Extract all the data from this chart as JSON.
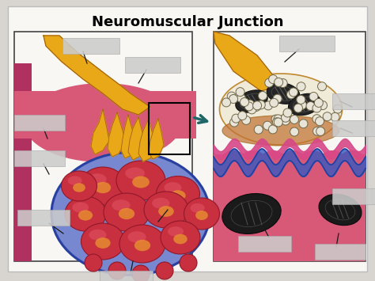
{
  "title": "Neuromuscular Junction",
  "title_fontsize": 13,
  "title_fontweight": "bold",
  "bg_color": "#d8d5d0",
  "panel_bg": "#f5f3ee",
  "border_color": "#333333",
  "nerve_yellow": "#e8a818",
  "nerve_dark": "#a06010",
  "nerve_light": "#f0c050",
  "muscle_pink": "#d85880",
  "muscle_mid": "#c04870",
  "muscle_light": "#e878a0",
  "fiber_blue": "#5070b8",
  "fiber_blue_light": "#8090d0",
  "fiber_red": "#c83040",
  "fiber_red_light": "#e05060",
  "sarco_orange": "#e89030",
  "arrow_color": "#206868",
  "mit_color": "#1a1a1a",
  "vesicle_fill": "#e8e4d8",
  "vesicle_edge": "#807858",
  "label_box": "#cccccc",
  "line_color": "#1a1a1a",
  "white": "#ffffff",
  "synaptic_cream": "#f0ead8",
  "pink_fold": "#d84888",
  "blue_fold": "#3858c0"
}
